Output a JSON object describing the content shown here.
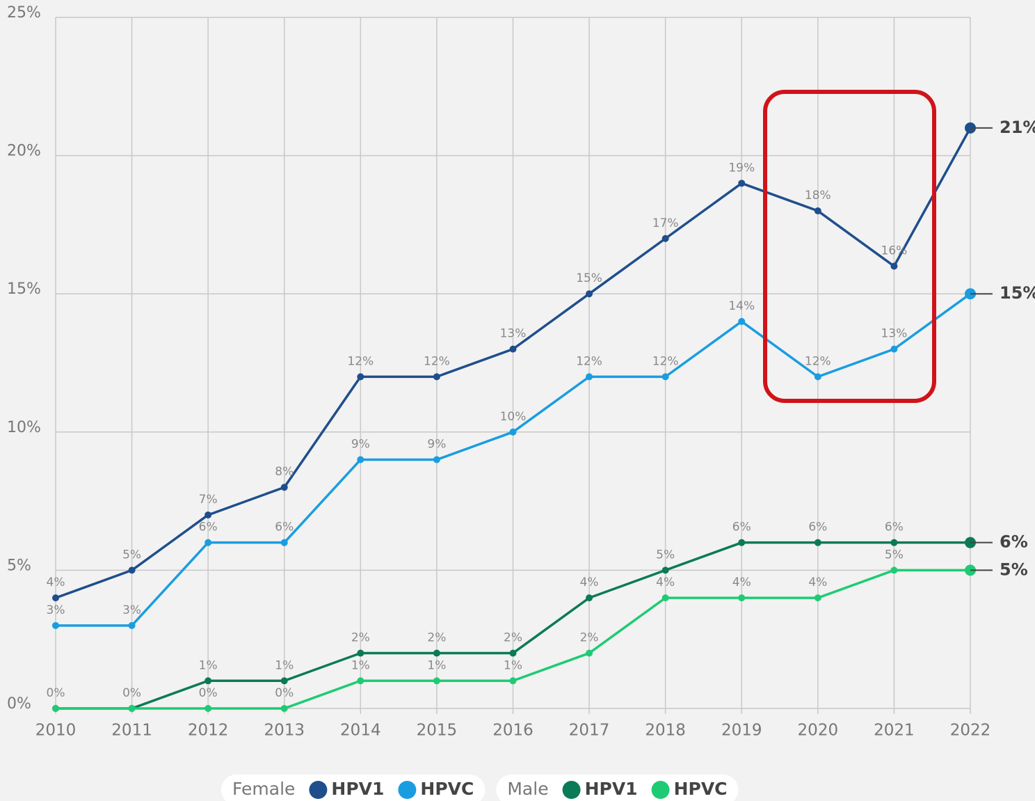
{
  "chart_data": {
    "type": "line",
    "categories": [
      "2010",
      "2011",
      "2012",
      "2013",
      "2014",
      "2015",
      "2016",
      "2017",
      "2018",
      "2019",
      "2020",
      "2021",
      "2022"
    ],
    "ylim": [
      0,
      25
    ],
    "yticks": [
      {
        "value": 0,
        "label": "0%"
      },
      {
        "value": 5,
        "label": "5%"
      },
      {
        "value": 10,
        "label": "10%"
      },
      {
        "value": 15,
        "label": "15%"
      },
      {
        "value": 20,
        "label": "20%"
      },
      {
        "value": 25,
        "label": "25%"
      }
    ],
    "grid": true,
    "legend": "bottom",
    "series": [
      {
        "name": "HPV1",
        "group": "Female",
        "color": "#1f4e8c",
        "values": [
          4,
          5,
          7,
          8,
          12,
          12,
          13,
          15,
          17,
          19,
          18,
          16,
          21
        ],
        "value_labels": [
          "4%",
          "5%",
          "7%",
          "8%",
          "12%",
          "12%",
          "13%",
          "15%",
          "17%",
          "19%",
          "18%",
          "16%",
          "21%"
        ]
      },
      {
        "name": "HPVC",
        "group": "Female",
        "color": "#1a9de0",
        "values": [
          3,
          3,
          6,
          6,
          9,
          9,
          10,
          12,
          12,
          14,
          12,
          13,
          15
        ],
        "value_labels": [
          "3%",
          "3%",
          "6%",
          "6%",
          "9%",
          "9%",
          "10%",
          "12%",
          "12%",
          "14%",
          "12%",
          "13%",
          "15%"
        ]
      },
      {
        "name": "HPV1",
        "group": "Male",
        "color": "#0b7a57",
        "values": [
          0,
          0,
          1,
          1,
          2,
          2,
          2,
          4,
          5,
          6,
          6,
          6,
          6
        ],
        "value_labels": [
          null,
          null,
          "1%",
          "1%",
          "2%",
          "2%",
          "2%",
          "4%",
          "5%",
          "6%",
          "6%",
          "6%",
          "6%"
        ]
      },
      {
        "name": "HPVC",
        "group": "Male",
        "color": "#1ecb74",
        "values": [
          0,
          0,
          0,
          0,
          1,
          1,
          1,
          2,
          4,
          4,
          4,
          5,
          5
        ],
        "value_labels": [
          "0%",
          "0%",
          "0%",
          "0%",
          "1%",
          "1%",
          "1%",
          "2%",
          "4%",
          "4%",
          "4%",
          "5%",
          "5%"
        ]
      }
    ]
  }
}
